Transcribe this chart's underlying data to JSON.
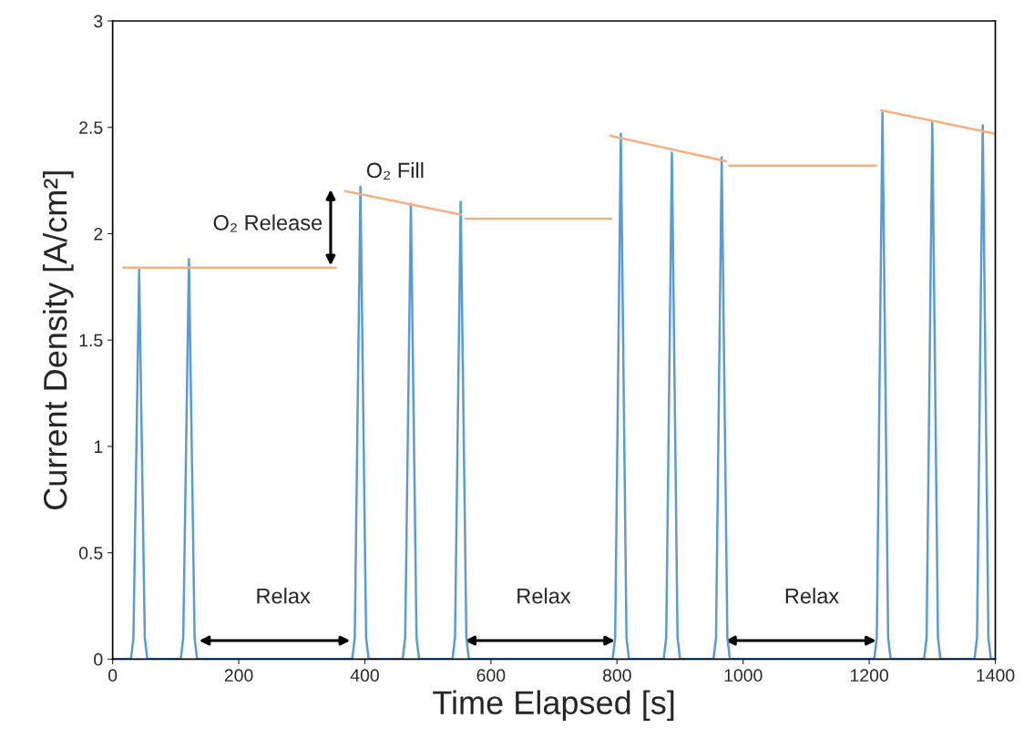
{
  "chart_data": {
    "type": "line",
    "xlabel": "Time Elapsed [s]",
    "ylabel": "Current Density [A/cm²]",
    "xlim": [
      0,
      1400
    ],
    "ylim": [
      0,
      3
    ],
    "xticks": [
      0,
      200,
      400,
      600,
      800,
      1000,
      1200,
      1400
    ],
    "yticks": [
      0,
      {
        "value": 0.5,
        "label": "0.5"
      },
      1,
      {
        "value": 1.5,
        "label": "1.5"
      },
      2,
      {
        "value": 2.5,
        "label": "2.5"
      },
      3
    ],
    "grid": false,
    "marker": "none",
    "line_style": "solid",
    "series": [
      {
        "color": "#5b9bd5",
        "x": [
          0,
          29,
          33,
          42,
          51,
          55,
          108,
          112,
          121,
          130,
          134,
          380,
          384,
          393,
          402,
          406,
          460,
          464,
          473,
          482,
          486,
          539,
          543,
          552,
          561,
          565,
          793,
          797,
          806,
          815,
          819,
          874,
          878,
          887,
          896,
          900,
          953,
          957,
          966,
          975,
          979,
          1208,
          1212,
          1221,
          1230,
          1234,
          1287,
          1291,
          1300,
          1309,
          1313,
          1367,
          1371,
          1380,
          1389,
          1393,
          1400
        ],
        "values": [
          0,
          0,
          0.1,
          1.83,
          0.1,
          0,
          0,
          0.1,
          1.88,
          0.1,
          0,
          0,
          0.1,
          2.22,
          0.1,
          0,
          0,
          0.1,
          2.14,
          0.1,
          0,
          0,
          0.1,
          2.15,
          0.1,
          0,
          0,
          0.1,
          2.47,
          0.1,
          0,
          0,
          0.1,
          2.38,
          0.1,
          0,
          0,
          0.1,
          2.36,
          0.1,
          0,
          0,
          0.1,
          2.57,
          0.1,
          0,
          0,
          0.1,
          2.52,
          0.1,
          0,
          0,
          0.1,
          2.51,
          0.1,
          0,
          0
        ]
      },
      {
        "type": "line",
        "color": "#f4b183",
        "x": [
          17,
          354
        ],
        "values": [
          1.84,
          1.84
        ]
      },
      {
        "type": "line",
        "color": "#f4b183",
        "x": [
          369,
          552
        ],
        "values": [
          2.2,
          2.09
        ]
      },
      {
        "type": "line",
        "color": "#f4b183",
        "x": [
          559,
          791
        ],
        "values": [
          2.07,
          2.07
        ]
      },
      {
        "type": "line",
        "color": "#f4b183",
        "x": [
          789,
          973
        ],
        "values": [
          2.46,
          2.34
        ]
      },
      {
        "type": "line",
        "color": "#f4b183",
        "x": [
          978,
          1211
        ],
        "values": [
          2.32,
          2.32
        ]
      },
      {
        "type": "line",
        "color": "#f4b183",
        "x": [
          1219,
          1400
        ],
        "values": [
          2.58,
          2.47
        ]
      }
    ],
    "annotations": [
      "O₂ Release",
      "O₂ Fill",
      "Relax",
      "Relax",
      "Relax"
    ]
  }
}
